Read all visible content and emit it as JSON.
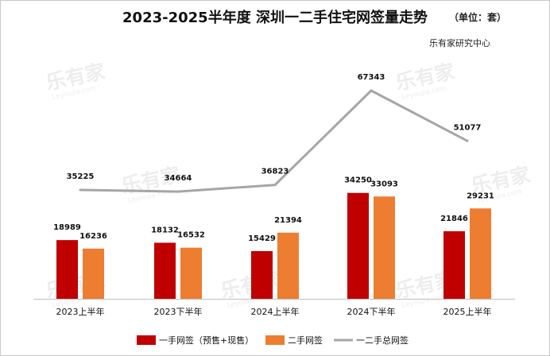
{
  "header": {
    "title": "2023-2025半年度 深圳一二手住宅网签量走势",
    "unit": "（单位：套）",
    "source": "乐有家研究中心"
  },
  "watermark": {
    "brand": "乐有家",
    "sub": "Leyoujia.com"
  },
  "colors": {
    "first_hand": "#C00000",
    "second_hand": "#ED7D31",
    "total": "#A6A6A6"
  },
  "chart_data": {
    "type": "bar",
    "title": "2023-2025半年度 深圳一二手住宅网签量走势",
    "unit": "（单位：套）",
    "categories": [
      "2023上半年",
      "2023下半年",
      "2024上半年",
      "2024下半年",
      "2025上半年"
    ],
    "series": [
      {
        "name": "一手网签（预售+现售）",
        "type": "bar",
        "values": [
          18989,
          18132,
          15429,
          34250,
          21846
        ]
      },
      {
        "name": "二手网签",
        "type": "bar",
        "values": [
          16236,
          16532,
          21394,
          33093,
          29231
        ]
      },
      {
        "name": "一二手总网签",
        "type": "line",
        "values": [
          35225,
          34664,
          36823,
          67343,
          51077
        ]
      }
    ],
    "legend_position": "bottom",
    "grid": false
  }
}
